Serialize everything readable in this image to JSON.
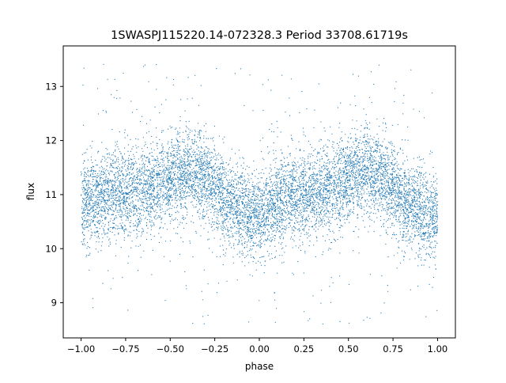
{
  "chart_data": {
    "type": "scatter",
    "title": "1SWASPJ115220.14-072328.3 Period 33708.61719s",
    "xlabel": "phase",
    "ylabel": "flux",
    "xlim": [
      -1.1,
      1.1
    ],
    "ylim": [
      8.35,
      13.75
    ],
    "xticks": [
      -1.0,
      -0.75,
      -0.5,
      -0.25,
      0.0,
      0.25,
      0.5,
      0.75,
      1.0
    ],
    "xtick_labels": [
      "−1.00",
      "−0.75",
      "−0.50",
      "−0.25",
      "0.00",
      "0.25",
      "0.50",
      "0.75",
      "1.00"
    ],
    "yticks": [
      9,
      10,
      11,
      12,
      13
    ],
    "ytick_labels": [
      "9",
      "10",
      "11",
      "12",
      "13"
    ],
    "grid": false,
    "legend": "none",
    "color": "#1f77b4",
    "series": [
      {
        "phase_range": [
          -1.0,
          1.0
        ],
        "x": [
          -1.0,
          -0.9,
          -0.8,
          -0.7,
          -0.6,
          -0.5,
          -0.4,
          -0.3,
          -0.2,
          -0.1,
          0.0,
          0.1,
          0.2,
          0.3,
          0.4,
          0.5,
          0.6,
          0.7,
          0.8,
          0.9,
          1.0
        ],
        "y": [
          10.8,
          10.95,
          11.05,
          11.05,
          11.15,
          11.3,
          11.45,
          11.3,
          10.95,
          10.7,
          10.6,
          10.85,
          11.0,
          11.05,
          11.1,
          11.3,
          11.45,
          11.3,
          10.95,
          10.7,
          10.6
        ],
        "scatter_sigma": 0.4,
        "outlier_range": [
          8.6,
          13.5
        ]
      }
    ]
  }
}
